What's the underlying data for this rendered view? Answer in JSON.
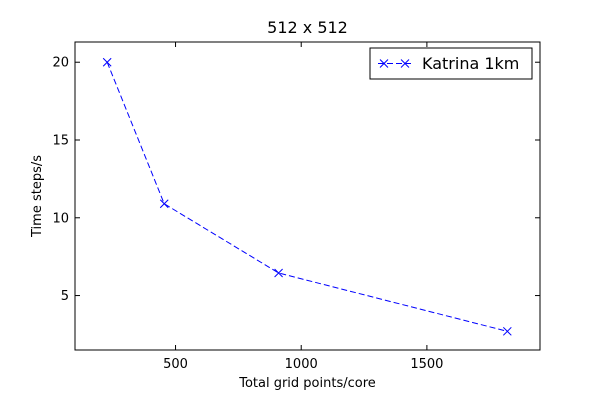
{
  "chart_data": {
    "type": "line",
    "title": "512 x 512",
    "xlabel": "Total grid points/core",
    "ylabel": "Time steps/s",
    "xlim": [
      100,
      1950
    ],
    "ylim": [
      1.5,
      21.3
    ],
    "x_ticks": [
      500,
      1000,
      1500
    ],
    "y_ticks": [
      5,
      10,
      15,
      20
    ],
    "grid": false,
    "legend_position": "top-right",
    "series": [
      {
        "name": "Katrina 1km",
        "color": "#0000ff",
        "line_style": "dashed",
        "marker": "x",
        "x": [
          228,
          455,
          910,
          1820
        ],
        "y": [
          20,
          10.9,
          6.45,
          2.7
        ]
      }
    ]
  }
}
